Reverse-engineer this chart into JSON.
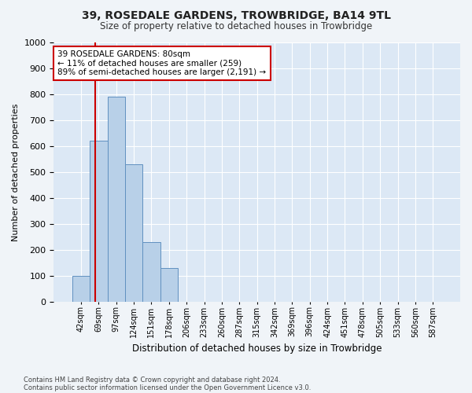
{
  "title": "39, ROSEDALE GARDENS, TROWBRIDGE, BA14 9TL",
  "subtitle": "Size of property relative to detached houses in Trowbridge",
  "xlabel": "Distribution of detached houses by size in Trowbridge",
  "ylabel": "Number of detached properties",
  "bar_labels": [
    "42sqm",
    "69sqm",
    "97sqm",
    "124sqm",
    "151sqm",
    "178sqm",
    "206sqm",
    "233sqm",
    "260sqm",
    "287sqm",
    "315sqm",
    "342sqm",
    "369sqm",
    "396sqm",
    "424sqm",
    "451sqm",
    "478sqm",
    "505sqm",
    "533sqm",
    "560sqm",
    "587sqm"
  ],
  "bar_heights": [
    100,
    620,
    790,
    530,
    230,
    130,
    0,
    0,
    0,
    0,
    0,
    0,
    0,
    0,
    0,
    0,
    0,
    0,
    0,
    0,
    0
  ],
  "bar_color": "#b8d0e8",
  "bar_edgecolor": "#6090c0",
  "vline_color": "#cc0000",
  "vline_x": 0.82,
  "ylim_max": 1000,
  "yticks": [
    0,
    100,
    200,
    300,
    400,
    500,
    600,
    700,
    800,
    900,
    1000
  ],
  "annotation_text": "39 ROSEDALE GARDENS: 80sqm\n← 11% of detached houses are smaller (259)\n89% of semi-detached houses are larger (2,191) →",
  "annotation_box_facecolor": "#ffffff",
  "annotation_box_edgecolor": "#cc0000",
  "footnote1": "Contains HM Land Registry data © Crown copyright and database right 2024.",
  "footnote2": "Contains public sector information licensed under the Open Government Licence v3.0.",
  "plot_bg_color": "#dce8f5",
  "fig_bg_color": "#f0f4f8",
  "grid_color": "#ffffff"
}
